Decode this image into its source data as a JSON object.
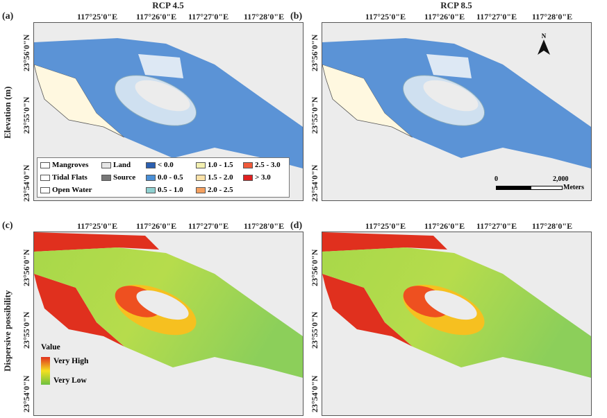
{
  "panels": [
    {
      "label": "(a)",
      "title": "RCP 4.5",
      "type": "elevation"
    },
    {
      "label": "(b)",
      "title": "RCP 8.5",
      "type": "elevation"
    },
    {
      "label": "(c)",
      "type": "dispersive"
    },
    {
      "label": "(d)",
      "type": "dispersive"
    }
  ],
  "axis": {
    "lon": [
      "117°25'0\"E",
      "117°26'0\"E",
      "117°27'0\"E",
      "117°28'0\"E"
    ],
    "lat": [
      "23°56'0\"N",
      "23°55'0\"N",
      "23°54'0\"N"
    ]
  },
  "row_labels": {
    "top": "Elevation (m)",
    "bottom": "Dispersive possibility"
  },
  "legend": {
    "items": [
      {
        "label": "Mangroves",
        "color": "#ffffff"
      },
      {
        "label": "Land",
        "color": "#e6e6e6"
      },
      {
        "label": "< 0.0",
        "color": "#2b5fb0"
      },
      {
        "label": "1.0 - 1.5",
        "color": "#f3f0b0"
      },
      {
        "label": "2.5 - 3.0",
        "color": "#f05a3a"
      },
      {
        "label": "Tidal Flats",
        "color": "#ffffff"
      },
      {
        "label": "Source",
        "color": "#777777"
      },
      {
        "label": "0.0 - 0.5",
        "color": "#4a8fd6"
      },
      {
        "label": "1.5 - 2.0",
        "color": "#fbe2a8"
      },
      {
        "label": "> 3.0",
        "color": "#e02020"
      },
      {
        "label": "Open Water",
        "color": "#ffffff"
      },
      {
        "label": "0.5 - 1.0",
        "color": "#8fd0d0"
      },
      {
        "label": "2.0 - 2.5",
        "color": "#f4a060"
      }
    ]
  },
  "value_legend": {
    "title": "Value",
    "high": "Very High",
    "low": "Very Low"
  },
  "north": "N",
  "scale": {
    "start": "0",
    "end": "2,000",
    "unit": "Meters"
  },
  "colors": {
    "water": "#5b93d6",
    "land": "#ececec",
    "red": "#e0301e",
    "green": "#8ccf5a",
    "yellow": "#f4e020"
  }
}
